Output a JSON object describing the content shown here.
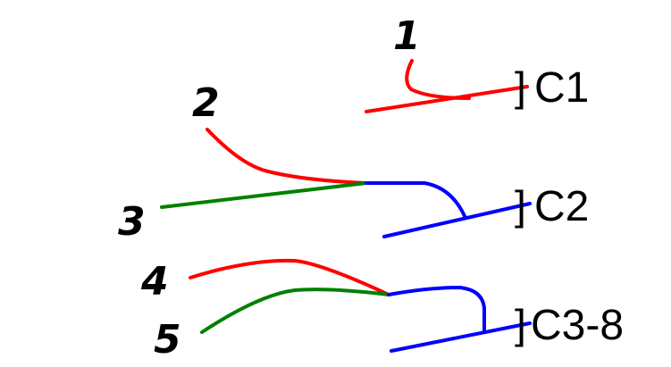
{
  "labels": {
    "n1": "1",
    "n2": "2",
    "n3": "3",
    "n4": "4",
    "n5": "5",
    "bracket": "]",
    "c1": "C1",
    "c2": "C2",
    "c3": "C3-8"
  },
  "colors": {
    "red": "#ff0000",
    "green": "#008000",
    "blue": "#0000ff"
  }
}
